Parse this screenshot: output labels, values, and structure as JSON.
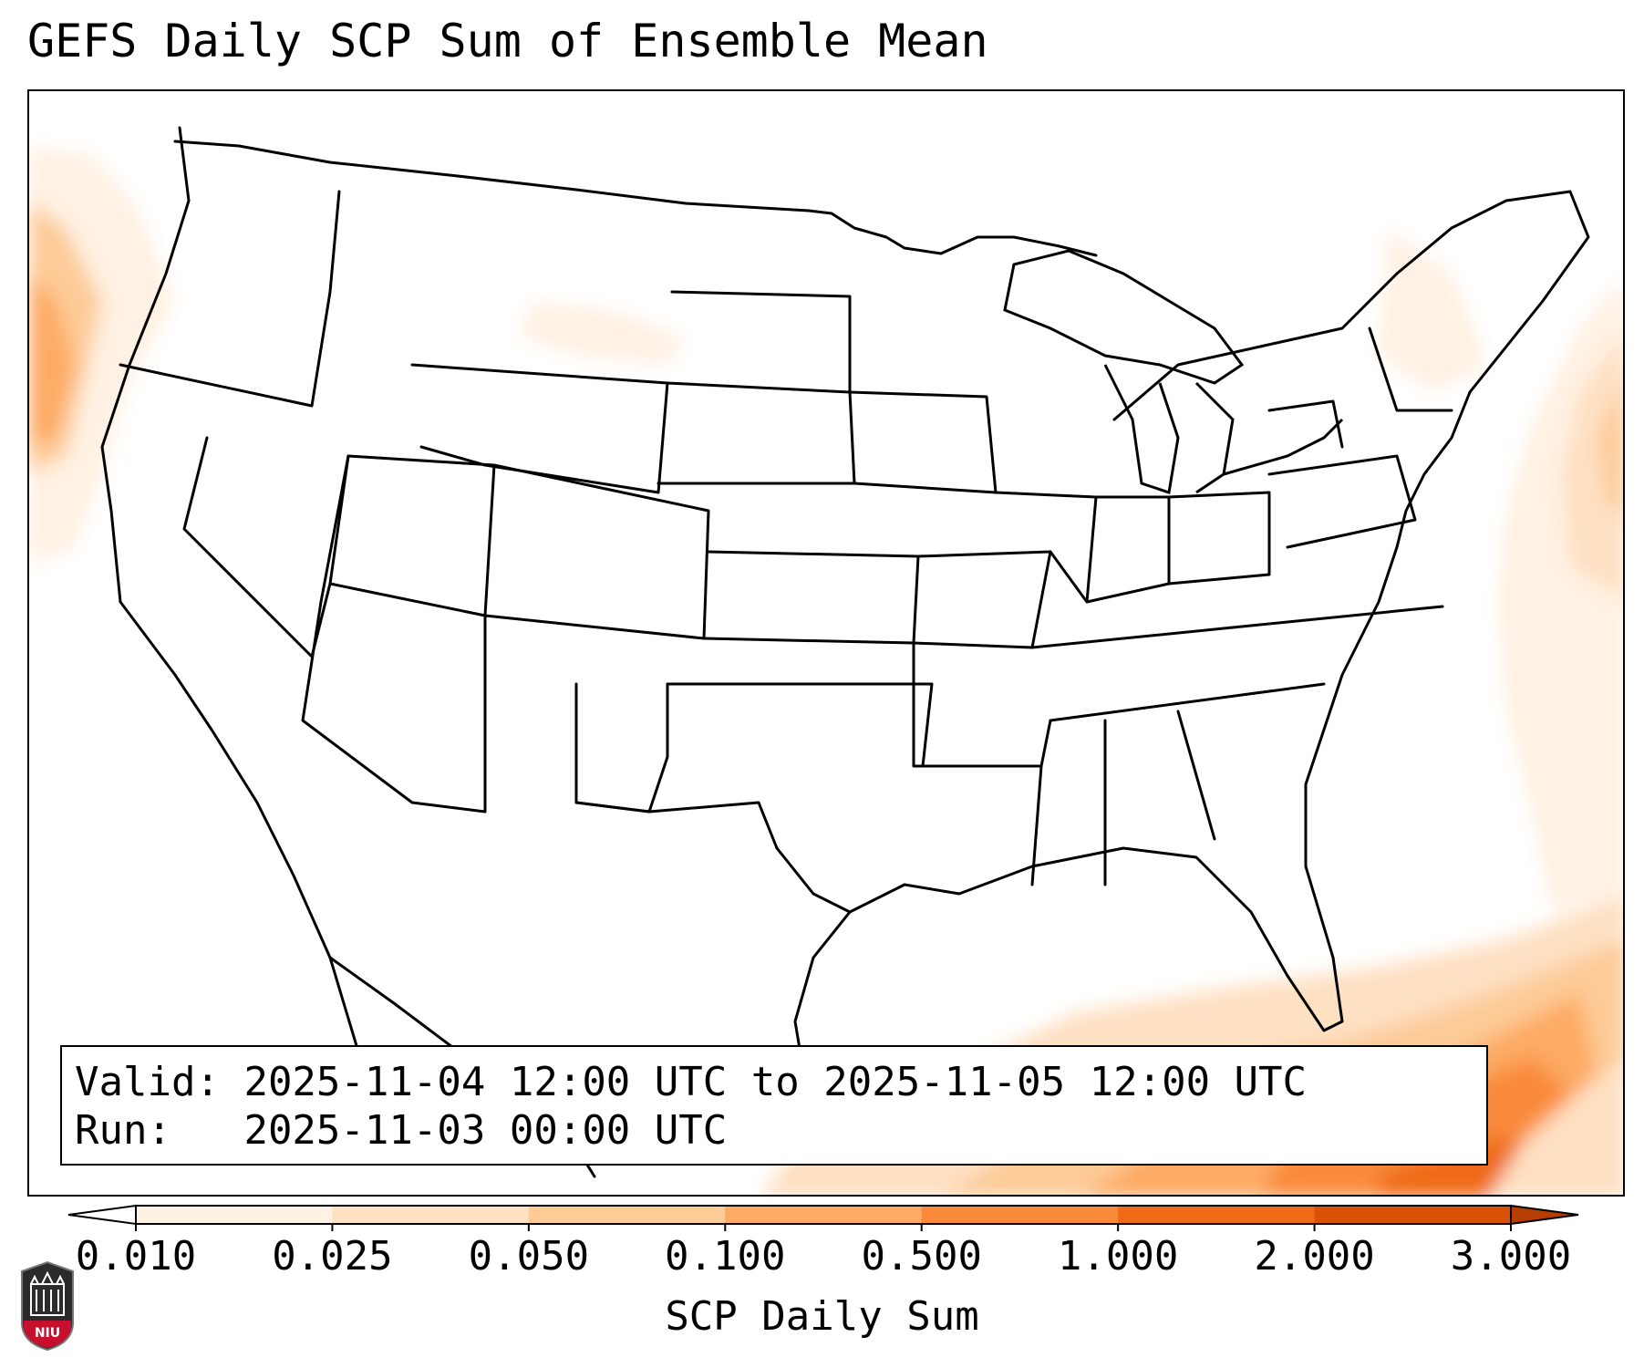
{
  "title": "GEFS Daily SCP Sum of Ensemble Mean",
  "info": {
    "valid_label": "Valid:",
    "valid_value": "2025-11-04 12:00 UTC to 2025-11-05 12:00 UTC",
    "run_label": "Run:",
    "run_value": "2025-11-03 00:00 UTC"
  },
  "colorbar": {
    "label": "SCP Daily Sum",
    "ticks": [
      "0.010",
      "0.025",
      "0.050",
      "0.100",
      "0.500",
      "1.000",
      "2.000",
      "3.000"
    ],
    "colors": [
      "#fff1e3",
      "#fee0c2",
      "#fdcb97",
      "#fdaa63",
      "#f98a3a",
      "#ef6b18",
      "#d95208"
    ],
    "extend_low_color": "#ffffff",
    "extend_high_color": "#b83d02"
  },
  "logo": {
    "text": "NIU"
  }
}
